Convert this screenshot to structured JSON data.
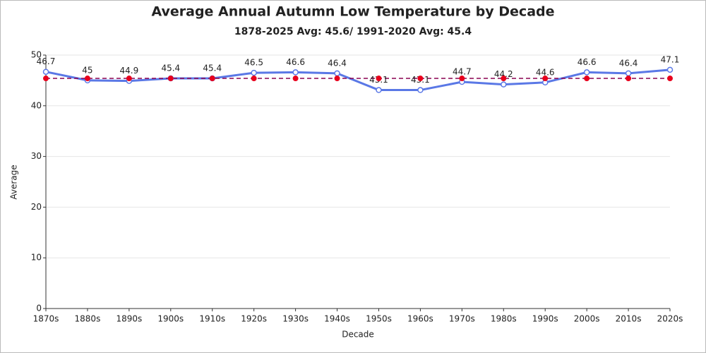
{
  "chart_data": {
    "type": "line",
    "title": "Average Annual Autumn Low Temperature by Decade",
    "subtitle": "1878-2025 Avg: 45.6/ 1991-2020 Avg: 45.4",
    "x_label": "Decade",
    "y_label": "Average",
    "categories": [
      "1870s",
      "1880s",
      "1890s",
      "1900s",
      "1910s",
      "1920s",
      "1930s",
      "1940s",
      "1950s",
      "1960s",
      "1970s",
      "1980s",
      "1990s",
      "2000s",
      "2010s",
      "2020s"
    ],
    "series": [
      {
        "color": "#5a78e6",
        "line_style": "solid",
        "data_labels": true,
        "values": [
          46.7,
          45,
          44.9,
          45.4,
          45.4,
          46.5,
          46.6,
          46.4,
          43.1,
          43.1,
          44.7,
          44.2,
          44.6,
          46.6,
          46.4,
          47.1
        ]
      },
      {
        "color": "#e8001c",
        "line_style": "dashed",
        "data_labels": false,
        "values": [
          45.4,
          45.4,
          45.4,
          45.4,
          45.4,
          45.4,
          45.4,
          45.4,
          45.4,
          45.4,
          45.4,
          45.4,
          45.4,
          45.4,
          45.4,
          45.4
        ]
      }
    ],
    "ylim": [
      0,
      50
    ],
    "yticks": [
      0,
      10,
      20,
      30,
      40,
      50
    ],
    "grid": true
  }
}
